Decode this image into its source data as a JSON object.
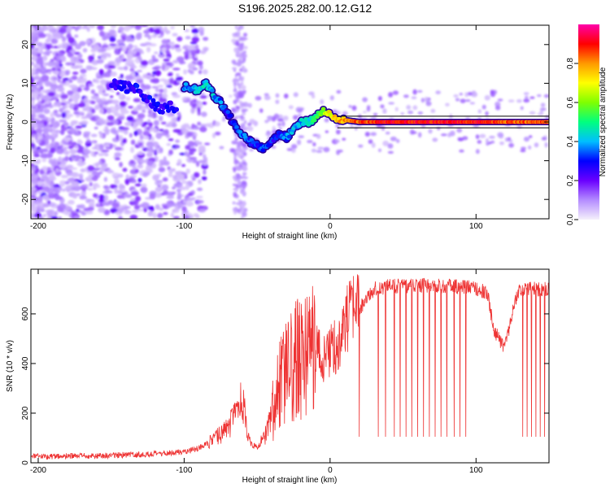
{
  "title": "S196.2025.282.00.12.G12",
  "chart_data": [
    {
      "type": "heatmap",
      "title": "S196.2025.282.00.12.G12",
      "xlabel": "Height of straight line (km)",
      "ylabel": "Frequency (Hz)",
      "xlim": [
        -205,
        150
      ],
      "ylim": [
        -25,
        25
      ],
      "xticks": [
        -200,
        -100,
        0,
        100
      ],
      "yticks": [
        -20,
        -10,
        0,
        10,
        20
      ],
      "colorbar": {
        "label": "Normalized spectral amplitude",
        "range": [
          0,
          1
        ],
        "ticks": [
          "0.0",
          "0.2",
          "0.4",
          "0.6",
          "0.8"
        ],
        "colors": [
          "#f5f0fb",
          "#b48cff",
          "#6a00ff",
          "#0000ff",
          "#00bfff",
          "#00ff7f",
          "#7fff00",
          "#ffff00",
          "#ff9900",
          "#ff0000",
          "#ff00aa"
        ]
      },
      "ridge": {
        "x": [
          -100,
          -95,
          -90,
          -85,
          -80,
          -75,
          -70,
          -65,
          -60,
          -55,
          -50,
          -45,
          -40,
          -35,
          -30,
          -25,
          -20,
          -15,
          -10,
          -5,
          0,
          5,
          10,
          20,
          40,
          60,
          80,
          100,
          120,
          150
        ],
        "y": [
          9,
          9,
          8,
          10,
          7,
          5,
          2,
          -1,
          -3,
          -5,
          -6,
          -7,
          -5,
          -3,
          -4,
          -2,
          0,
          0,
          1,
          3,
          2,
          1,
          0.5,
          0,
          0,
          0,
          0,
          0,
          0,
          0
        ],
        "amplitude": [
          0.35,
          0.4,
          0.4,
          0.45,
          0.4,
          0.35,
          0.3,
          0.3,
          0.35,
          0.3,
          0.3,
          0.35,
          0.3,
          0.3,
          0.35,
          0.4,
          0.4,
          0.45,
          0.5,
          0.6,
          0.7,
          0.75,
          0.8,
          0.85,
          0.9,
          0.9,
          0.9,
          0.9,
          0.85,
          0.85
        ]
      },
      "secondary_ridge": {
        "x": [
          -150,
          -140,
          -130,
          -120,
          -115,
          -110,
          -105
        ],
        "y": [
          10,
          9,
          8,
          4,
          3,
          4,
          3
        ]
      }
    },
    {
      "type": "line",
      "xlabel": "Height of straight line (km)",
      "ylabel": "SNR (10 * v/v)",
      "xlim": [
        -205,
        150
      ],
      "ylim": [
        0,
        780
      ],
      "xticks": [
        -200,
        -100,
        0,
        100
      ],
      "yticks": [
        0,
        200,
        400,
        600
      ],
      "color": "#ee3333",
      "envelope": {
        "x": [
          -205,
          -160,
          -120,
          -100,
          -90,
          -80,
          -70,
          -65,
          -60,
          -57,
          -55,
          -50,
          -45,
          -40,
          -35,
          -30,
          -25,
          -20,
          -15,
          -10,
          -5,
          0,
          5,
          10,
          15,
          20,
          25,
          30,
          40,
          60,
          80,
          100,
          108,
          112,
          118,
          122,
          126,
          130,
          150
        ],
        "y": [
          25,
          28,
          35,
          45,
          60,
          90,
          140,
          190,
          260,
          130,
          80,
          60,
          100,
          200,
          300,
          360,
          400,
          430,
          450,
          480,
          400,
          460,
          470,
          560,
          600,
          620,
          660,
          700,
          710,
          715,
          712,
          705,
          680,
          540,
          470,
          520,
          640,
          700,
          700
        ]
      },
      "dropouts_x": [
        20,
        33,
        38,
        44,
        48,
        52,
        56,
        60,
        64,
        68,
        72,
        76,
        80,
        85,
        89,
        93,
        132,
        135,
        138,
        141,
        144,
        147
      ],
      "dropout_value": 105
    }
  ]
}
